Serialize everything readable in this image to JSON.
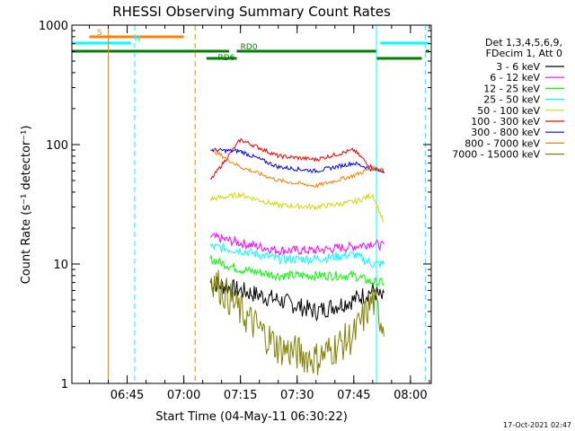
{
  "chart_data": {
    "type": "line",
    "title": "RHESSI Observing Summary Count Rates",
    "xlabel": "Start Time (04-May-11 06:30:22)",
    "ylabel": "Count Rate (s⁻¹ detector⁻¹)",
    "y_scale": "log",
    "ylim": [
      1,
      1000
    ],
    "xlim": [
      "06:30:22",
      "08:05:30"
    ],
    "x_ticks": [
      "06:45",
      "07:00",
      "07:15",
      "07:30",
      "07:45",
      "08:00"
    ],
    "y_ticks": [
      "1",
      "10",
      "100",
      "1000"
    ],
    "footer": "17-Oct-2021 02:47",
    "legend": {
      "placement": "right",
      "header_lines": [
        "Det 1,3,4,5,6,9,",
        "FDecim 1, Att 0"
      ]
    },
    "series": [
      {
        "name": "3 - 6 keV",
        "color": "#000000",
        "x": [
          "07:07",
          "07:15",
          "07:25",
          "07:35",
          "07:45",
          "07:50",
          "07:53"
        ],
        "y": [
          7,
          6,
          5,
          4,
          5,
          6,
          5
        ]
      },
      {
        "name": "6 - 12 keV",
        "color": "#ff00ff",
        "x": [
          "07:07",
          "07:15",
          "07:25",
          "07:35",
          "07:45",
          "07:50",
          "07:53"
        ],
        "y": [
          17,
          15,
          13,
          13,
          14,
          15,
          14
        ]
      },
      {
        "name": "12 - 25 keV",
        "color": "#00ff00",
        "x": [
          "07:07",
          "07:15",
          "07:25",
          "07:35",
          "07:45",
          "07:50",
          "07:53"
        ],
        "y": [
          11,
          9,
          8,
          8,
          8,
          7,
          7
        ]
      },
      {
        "name": "25 - 50 keV",
        "color": "#00ffff",
        "x": [
          "07:07",
          "07:15",
          "07:25",
          "07:35",
          "07:45",
          "07:50",
          "07:53"
        ],
        "y": [
          14,
          13,
          11,
          11,
          12,
          10,
          10
        ]
      },
      {
        "name": "50 - 100 keV",
        "color": "#d8d800",
        "x": [
          "07:07",
          "07:15",
          "07:25",
          "07:35",
          "07:45",
          "07:50",
          "07:53"
        ],
        "y": [
          35,
          38,
          31,
          30,
          33,
          38,
          22
        ]
      },
      {
        "name": "100 - 300 keV",
        "color": "#ff0000",
        "x": [
          "07:07",
          "07:15",
          "07:25",
          "07:35",
          "07:45",
          "07:50",
          "07:53"
        ],
        "y": [
          50,
          110,
          80,
          75,
          90,
          63,
          60
        ]
      },
      {
        "name": "300 - 800 keV",
        "color": "#0000ff",
        "x": [
          "07:07",
          "07:15",
          "07:25",
          "07:35",
          "07:45",
          "07:50",
          "07:53"
        ],
        "y": [
          90,
          88,
          65,
          60,
          70,
          62,
          60
        ]
      },
      {
        "name": "800 - 7000 keV",
        "color": "#ff8000",
        "x": [
          "07:07",
          "07:15",
          "07:25",
          "07:35",
          "07:45",
          "07:50",
          "07:53"
        ],
        "y": [
          92,
          65,
          50,
          45,
          55,
          64,
          62
        ]
      },
      {
        "name": "7000 - 15000 keV",
        "color": "#808000",
        "x": [
          "07:07",
          "07:15",
          "07:25",
          "07:35",
          "07:45",
          "07:50",
          "07:53"
        ],
        "y": [
          8,
          4,
          2,
          1.6,
          2.5,
          5,
          3
        ]
      }
    ],
    "flags": [
      {
        "label": "S",
        "color": "#ff8000",
        "intervals": [
          [
            "06:35",
            "07:00"
          ]
        ]
      },
      {
        "label": "N",
        "color": "#00ffff",
        "intervals": [
          [
            "06:30:22",
            "06:46"
          ],
          [
            "07:52",
            "08:05"
          ]
        ]
      },
      {
        "label": "RD0",
        "color": "#008000",
        "intervals": [
          [
            "06:30:22",
            "07:12"
          ],
          [
            "07:14",
            "07:51"
          ],
          [
            "08:04",
            "08:05"
          ]
        ]
      },
      {
        "label": "RD6",
        "color": "#008000",
        "intervals": [
          [
            "07:06",
            "07:14"
          ],
          [
            "07:51",
            "08:03"
          ]
        ]
      }
    ],
    "vertical_markers": [
      {
        "x": "06:30:22",
        "color": "#00ffff",
        "style": "solid"
      },
      {
        "x": "06:40",
        "color": "#ff8000",
        "style": "solid"
      },
      {
        "x": "06:47",
        "color": "#00ffff",
        "style": "dashed"
      },
      {
        "x": "07:03",
        "color": "#ff8000",
        "style": "dashed"
      },
      {
        "x": "07:51",
        "color": "#00ffff",
        "style": "solid"
      },
      {
        "x": "08:04",
        "color": "#00ffff",
        "style": "dashed"
      }
    ]
  }
}
